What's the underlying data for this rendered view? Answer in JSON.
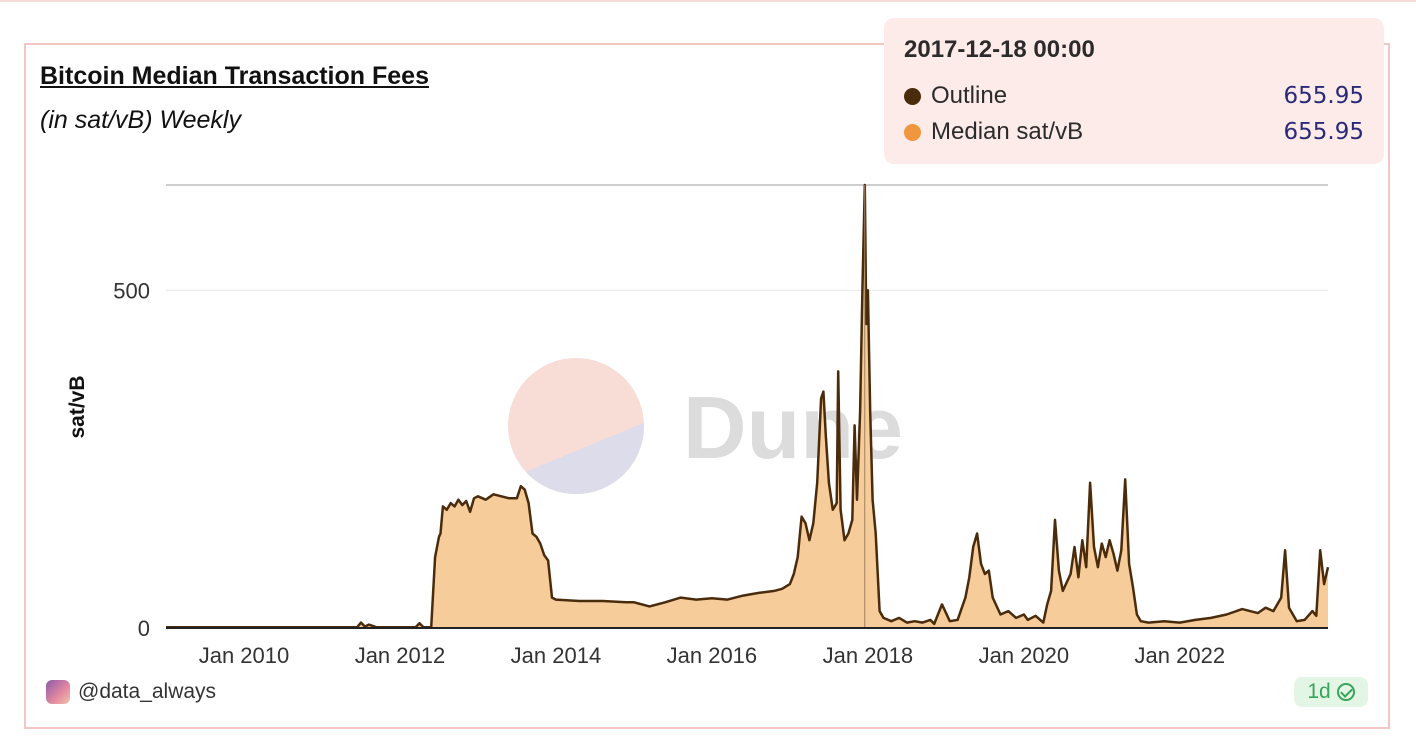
{
  "header": {
    "title": "Bitcoin Median Transaction Fees",
    "subtitle": "(in sat/vB) Weekly"
  },
  "tooltip": {
    "date": "2017-12-18 00:00",
    "rows": [
      {
        "name": "Outline",
        "value": "655.95",
        "color": "#4a2c0c"
      },
      {
        "name": "Median sat/vB",
        "value": "655.95",
        "color": "#f0963c"
      }
    ]
  },
  "watermark": {
    "text": "Dune"
  },
  "footer": {
    "user": "@data_always",
    "badge": "1d"
  },
  "colors": {
    "line": "#4a2c0c",
    "fill": "#f7cc9b",
    "grid": "#e8e8e8",
    "axis": "#222222"
  },
  "chart_data": {
    "type": "area",
    "ylabel": "sat/vB",
    "xlabel": "",
    "ylim": [
      0,
      655.95
    ],
    "xlim": [
      2009.0,
      2023.9
    ],
    "yticks": [
      0,
      500
    ],
    "xticks": [
      {
        "label": "Jan 2010",
        "x": 2010.0
      },
      {
        "label": "Jan 2012",
        "x": 2012.0
      },
      {
        "label": "Jan 2014",
        "x": 2014.0
      },
      {
        "label": "Jan 2016",
        "x": 2016.0
      },
      {
        "label": "Jan 2018",
        "x": 2018.0
      },
      {
        "label": "Jan 2020",
        "x": 2020.0
      },
      {
        "label": "Jan 2022",
        "x": 2022.0
      }
    ],
    "highlight": {
      "x": 2017.96,
      "y": 655.95
    },
    "series": [
      {
        "name": "Median sat/vB",
        "points": [
          [
            2009.0,
            1
          ],
          [
            2011.0,
            1
          ],
          [
            2011.45,
            1
          ],
          [
            2011.5,
            8
          ],
          [
            2011.55,
            2
          ],
          [
            2011.6,
            5
          ],
          [
            2011.7,
            1
          ],
          [
            2012.0,
            1
          ],
          [
            2012.2,
            1
          ],
          [
            2012.25,
            7
          ],
          [
            2012.3,
            1
          ],
          [
            2012.4,
            1
          ],
          [
            2012.45,
            105
          ],
          [
            2012.5,
            135
          ],
          [
            2012.52,
            140
          ],
          [
            2012.55,
            180
          ],
          [
            2012.6,
            175
          ],
          [
            2012.65,
            185
          ],
          [
            2012.7,
            180
          ],
          [
            2012.75,
            190
          ],
          [
            2012.8,
            182
          ],
          [
            2012.85,
            188
          ],
          [
            2012.9,
            172
          ],
          [
            2012.95,
            192
          ],
          [
            2013.0,
            195
          ],
          [
            2013.1,
            190
          ],
          [
            2013.2,
            198
          ],
          [
            2013.3,
            195
          ],
          [
            2013.4,
            192
          ],
          [
            2013.5,
            192
          ],
          [
            2013.55,
            210
          ],
          [
            2013.6,
            205
          ],
          [
            2013.65,
            185
          ],
          [
            2013.7,
            140
          ],
          [
            2013.75,
            135
          ],
          [
            2013.8,
            125
          ],
          [
            2013.85,
            108
          ],
          [
            2013.9,
            100
          ],
          [
            2013.95,
            45
          ],
          [
            2014.0,
            42
          ],
          [
            2014.3,
            40
          ],
          [
            2014.6,
            40
          ],
          [
            2014.9,
            38
          ],
          [
            2015.0,
            38
          ],
          [
            2015.2,
            32
          ],
          [
            2015.4,
            38
          ],
          [
            2015.6,
            45
          ],
          [
            2015.8,
            42
          ],
          [
            2016.0,
            44
          ],
          [
            2016.2,
            42
          ],
          [
            2016.4,
            48
          ],
          [
            2016.6,
            52
          ],
          [
            2016.8,
            55
          ],
          [
            2016.9,
            58
          ],
          [
            2017.0,
            65
          ],
          [
            2017.05,
            80
          ],
          [
            2017.1,
            105
          ],
          [
            2017.15,
            165
          ],
          [
            2017.2,
            155
          ],
          [
            2017.25,
            130
          ],
          [
            2017.3,
            155
          ],
          [
            2017.35,
            215
          ],
          [
            2017.4,
            340
          ],
          [
            2017.43,
            350
          ],
          [
            2017.46,
            285
          ],
          [
            2017.5,
            215
          ],
          [
            2017.55,
            175
          ],
          [
            2017.6,
            185
          ],
          [
            2017.62,
            380
          ],
          [
            2017.65,
            175
          ],
          [
            2017.7,
            130
          ],
          [
            2017.75,
            140
          ],
          [
            2017.8,
            160
          ],
          [
            2017.83,
            300
          ],
          [
            2017.86,
            190
          ],
          [
            2017.9,
            320
          ],
          [
            2017.93,
            500
          ],
          [
            2017.96,
            655.95
          ],
          [
            2017.98,
            450
          ],
          [
            2018.0,
            500
          ],
          [
            2018.03,
            320
          ],
          [
            2018.06,
            190
          ],
          [
            2018.1,
            140
          ],
          [
            2018.15,
            25
          ],
          [
            2018.2,
            15
          ],
          [
            2018.3,
            10
          ],
          [
            2018.4,
            15
          ],
          [
            2018.5,
            8
          ],
          [
            2018.6,
            10
          ],
          [
            2018.7,
            8
          ],
          [
            2018.8,
            12
          ],
          [
            2018.85,
            6
          ],
          [
            2018.95,
            35
          ],
          [
            2019.05,
            10
          ],
          [
            2019.15,
            12
          ],
          [
            2019.25,
            45
          ],
          [
            2019.3,
            75
          ],
          [
            2019.35,
            120
          ],
          [
            2019.4,
            140
          ],
          [
            2019.45,
            95
          ],
          [
            2019.5,
            80
          ],
          [
            2019.55,
            85
          ],
          [
            2019.6,
            45
          ],
          [
            2019.7,
            20
          ],
          [
            2019.8,
            25
          ],
          [
            2019.9,
            15
          ],
          [
            2020.0,
            20
          ],
          [
            2020.05,
            12
          ],
          [
            2020.15,
            18
          ],
          [
            2020.25,
            8
          ],
          [
            2020.3,
            35
          ],
          [
            2020.35,
            55
          ],
          [
            2020.4,
            160
          ],
          [
            2020.45,
            85
          ],
          [
            2020.5,
            55
          ],
          [
            2020.6,
            80
          ],
          [
            2020.65,
            120
          ],
          [
            2020.7,
            75
          ],
          [
            2020.75,
            130
          ],
          [
            2020.8,
            90
          ],
          [
            2020.85,
            215
          ],
          [
            2020.9,
            120
          ],
          [
            2020.95,
            90
          ],
          [
            2021.0,
            125
          ],
          [
            2021.05,
            105
          ],
          [
            2021.1,
            130
          ],
          [
            2021.15,
            110
          ],
          [
            2021.2,
            85
          ],
          [
            2021.25,
            115
          ],
          [
            2021.3,
            220
          ],
          [
            2021.35,
            95
          ],
          [
            2021.4,
            60
          ],
          [
            2021.45,
            20
          ],
          [
            2021.5,
            10
          ],
          [
            2021.6,
            8
          ],
          [
            2021.8,
            10
          ],
          [
            2022.0,
            8
          ],
          [
            2022.2,
            12
          ],
          [
            2022.4,
            15
          ],
          [
            2022.6,
            20
          ],
          [
            2022.8,
            28
          ],
          [
            2022.9,
            25
          ],
          [
            2023.0,
            22
          ],
          [
            2023.1,
            30
          ],
          [
            2023.2,
            25
          ],
          [
            2023.3,
            45
          ],
          [
            2023.35,
            115
          ],
          [
            2023.4,
            30
          ],
          [
            2023.5,
            10
          ],
          [
            2023.6,
            12
          ],
          [
            2023.7,
            25
          ],
          [
            2023.75,
            18
          ],
          [
            2023.8,
            115
          ],
          [
            2023.85,
            65
          ],
          [
            2023.9,
            90
          ]
        ]
      }
    ]
  }
}
